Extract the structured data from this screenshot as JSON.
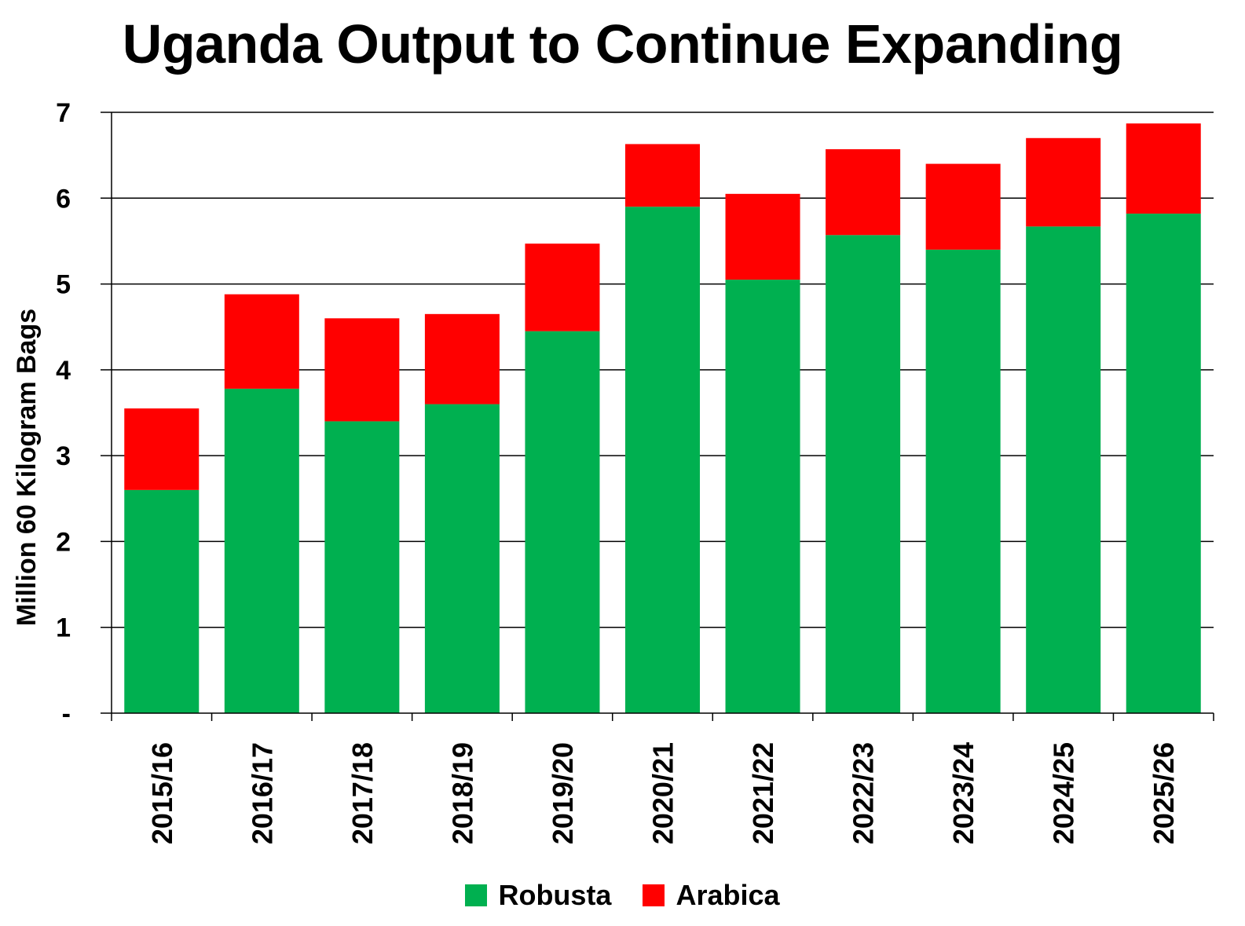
{
  "chart_data": {
    "type": "bar",
    "stacked": true,
    "title": "Uganda Output to Continue Expanding",
    "xlabel": "",
    "ylabel": "Million 60 Kilogram Bags",
    "ylim": [
      0,
      7
    ],
    "yticks": [
      0,
      1,
      2,
      3,
      4,
      5,
      6,
      7
    ],
    "ytick_labels": [
      "-",
      "1",
      "2",
      "3",
      "4",
      "5",
      "6",
      "7"
    ],
    "grid": true,
    "categories": [
      "2015/16",
      "2016/17",
      "2017/18",
      "2018/19",
      "2019/20",
      "2020/21",
      "2021/22",
      "2022/23",
      "2023/24",
      "2024/25",
      "2025/26"
    ],
    "series": [
      {
        "name": "Robusta",
        "color": "#00b050",
        "values": [
          2.6,
          3.78,
          3.4,
          3.6,
          4.45,
          5.9,
          5.05,
          5.57,
          5.4,
          5.67,
          5.82
        ]
      },
      {
        "name": "Arabica",
        "color": "#ff0000",
        "values": [
          0.95,
          1.1,
          1.2,
          1.05,
          1.02,
          0.73,
          1.0,
          1.0,
          1.0,
          1.03,
          1.05
        ]
      }
    ],
    "legend": {
      "position": "bottom",
      "entries": [
        "Robusta",
        "Arabica"
      ]
    }
  }
}
